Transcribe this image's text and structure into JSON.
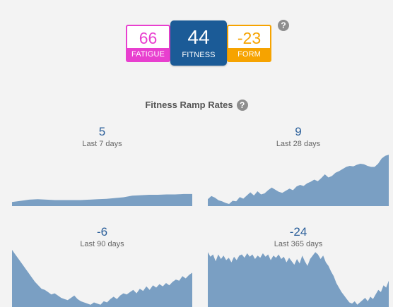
{
  "scores": {
    "fatigue": {
      "value": "66",
      "label": "FATIGUE",
      "color": "#e83fcf"
    },
    "fitness": {
      "value": "44",
      "label": "FITNESS",
      "color": "#1b5b97"
    },
    "form": {
      "value": "-23",
      "label": "FORM",
      "color": "#f6a300"
    },
    "help_icon": "question-circle-icon"
  },
  "ramp": {
    "title": "Fitness Ramp Rates",
    "help_icon": "question-circle-icon",
    "fill_color": "#7a9fc3",
    "panels": [
      {
        "value": "5",
        "label": "Last 7 days",
        "series": [
          10,
          13,
          16,
          17,
          16,
          15,
          15,
          15,
          15,
          16,
          17,
          18,
          20,
          22,
          26,
          27,
          28,
          28,
          29,
          29,
          30,
          30
        ]
      },
      {
        "value": "9",
        "label": "Last 28 days",
        "series": [
          13,
          19,
          16,
          11,
          9,
          6,
          4,
          10,
          9,
          17,
          14,
          20,
          26,
          20,
          28,
          22,
          24,
          30,
          35,
          31,
          27,
          25,
          29,
          33,
          30,
          37,
          40,
          38,
          43,
          46,
          50,
          47,
          53,
          60,
          54,
          57,
          63,
          66,
          70,
          74,
          76,
          75,
          78,
          80,
          79,
          76,
          74,
          74,
          80,
          90,
          95,
          97
        ]
      },
      {
        "value": "-6",
        "label": "Last 90 days",
        "series": [
          100,
          92,
          84,
          76,
          68,
          60,
          52,
          44,
          38,
          32,
          30,
          26,
          22,
          24,
          20,
          16,
          14,
          12,
          16,
          20,
          14,
          10,
          8,
          6,
          4,
          8,
          6,
          4,
          10,
          8,
          14,
          18,
          14,
          20,
          24,
          22,
          26,
          30,
          24,
          32,
          28,
          36,
          30,
          38,
          34,
          40,
          36,
          42,
          38,
          44,
          48,
          46,
          54,
          50,
          56,
          60
        ]
      },
      {
        "value": "-24",
        "label": "Last 365 days",
        "series": [
          96,
          88,
          92,
          80,
          92,
          84,
          90,
          82,
          86,
          78,
          88,
          82,
          90,
          92,
          86,
          94,
          88,
          92,
          84,
          90,
          86,
          94,
          88,
          92,
          82,
          90,
          86,
          92,
          84,
          88,
          78,
          86,
          80,
          74,
          84,
          76,
          90,
          80,
          72,
          84,
          90,
          96,
          92,
          84,
          90,
          78,
          72,
          62,
          54,
          42,
          34,
          26,
          20,
          14,
          8,
          6,
          10,
          4,
          8,
          12,
          16,
          10,
          18,
          14,
          22,
          30,
          26,
          38,
          34,
          46
        ]
      }
    ]
  }
}
